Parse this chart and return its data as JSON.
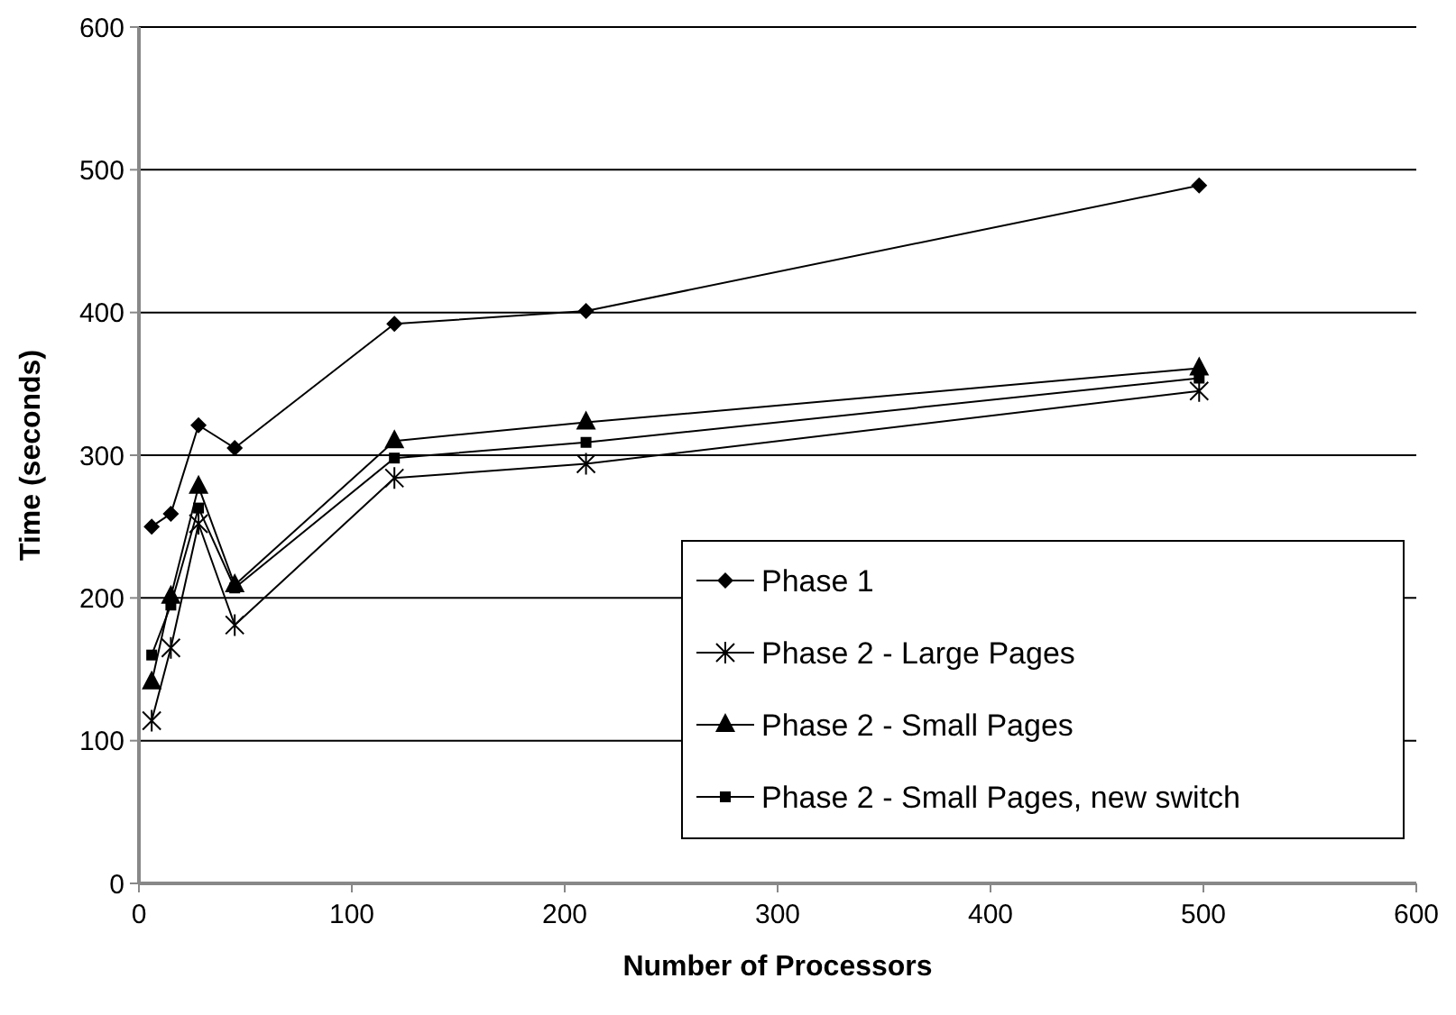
{
  "chart_data": {
    "type": "line",
    "xlabel": "Number of Processors",
    "ylabel": "Time (seconds)",
    "xlim": [
      0,
      600
    ],
    "xticks": [
      0,
      100,
      200,
      300,
      400,
      500,
      600
    ],
    "ylim": [
      0,
      600
    ],
    "yticks": [
      0,
      100,
      200,
      300,
      400,
      500,
      600
    ],
    "grid": "y",
    "legend": "bottom right",
    "line_style": "solid",
    "x": [
      6,
      15,
      28,
      45,
      120,
      210,
      498
    ],
    "series": [
      {
        "name": "Phase 1",
        "color": "#000000",
        "marker": "diamond",
        "values": [
          250,
          259,
          321,
          305,
          392,
          401,
          489
        ]
      },
      {
        "name": "Phase 2 - Large Pages",
        "color": "#000000",
        "marker": "cross",
        "values": [
          114,
          165,
          252,
          181,
          284,
          294,
          345
        ]
      },
      {
        "name": "Phase 2 - Small Pages",
        "color": "#000000",
        "marker": "triangle",
        "values": [
          141,
          201,
          278,
          209,
          310,
          323,
          361
        ]
      },
      {
        "name": "Phase 2 - Small Pages, new switch",
        "color": "#000000",
        "marker": "square",
        "values": [
          160,
          195,
          263,
          207,
          298,
          309,
          354
        ]
      }
    ]
  }
}
